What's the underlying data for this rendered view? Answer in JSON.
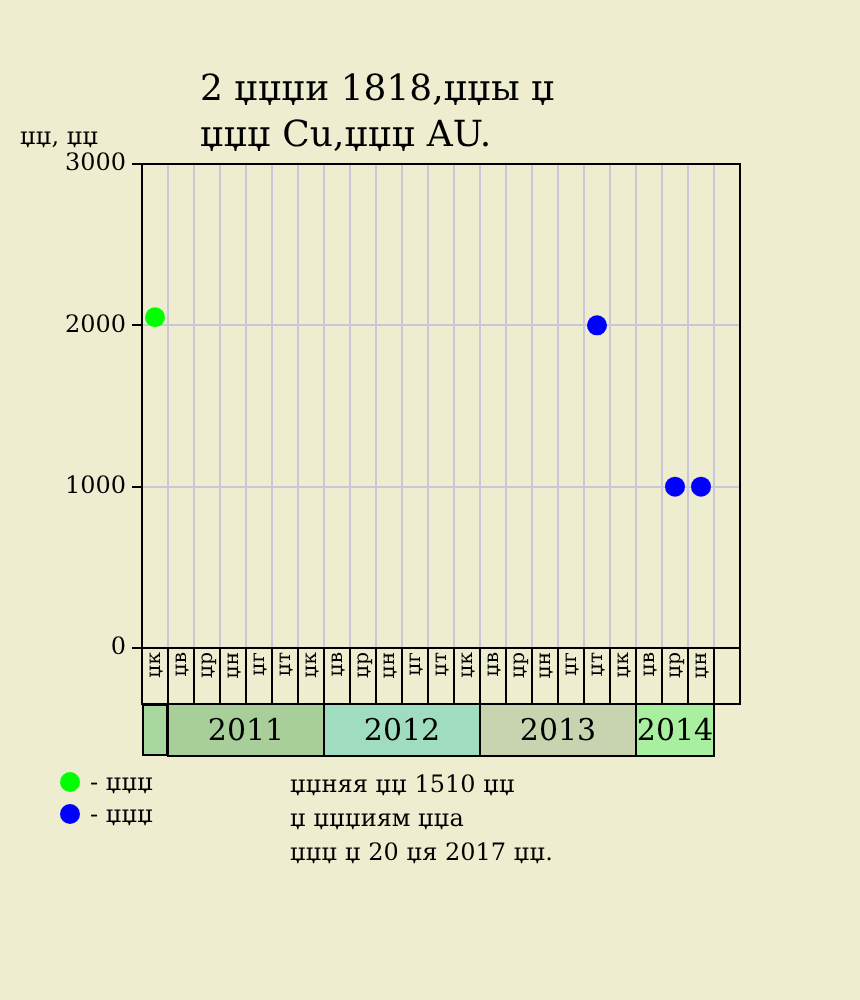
{
  "chart_data": {
    "type": "scatter",
    "title": "2 џџџи 1818,џџы џ\nџџџ Cu,џџџ AU.",
    "ylabel": "џџ, џџ",
    "categories": [
      "џк",
      "џв",
      "џр",
      "џн",
      "џг",
      "џт",
      "џк",
      "џв",
      "џр",
      "џн",
      "џг",
      "џт",
      "џк",
      "џв",
      "џр",
      "џн",
      "џг",
      "џт",
      "џк",
      "џв",
      "џр",
      "џн",
      null
    ],
    "series": [
      {
        "name": "- џџџ",
        "color": "#00ff00",
        "values": [
          2050,
          null,
          null,
          null,
          null,
          null,
          null,
          null,
          null,
          null,
          null,
          null,
          null,
          null,
          null,
          null,
          null,
          null,
          null,
          null,
          null,
          null,
          null
        ]
      },
      {
        "name": "- џџџ",
        "color": "#0000ff",
        "values": [
          null,
          null,
          null,
          null,
          null,
          null,
          null,
          null,
          null,
          null,
          null,
          null,
          null,
          null,
          null,
          null,
          null,
          2000,
          null,
          null,
          1000,
          1000,
          null
        ]
      }
    ],
    "ylim": [
      0,
      3000
    ],
    "yticks": [
      0,
      1000,
      2000,
      3000
    ],
    "grid": true,
    "legend": "bottom",
    "marker": "circle",
    "annotations": [
      "2011",
      "2012",
      "2013",
      "2014",
      "џџняя џџ 1510 џџ",
      "џ џџџиям џџа",
      "џџџ џ 20 џя 2017 џџ."
    ]
  }
}
